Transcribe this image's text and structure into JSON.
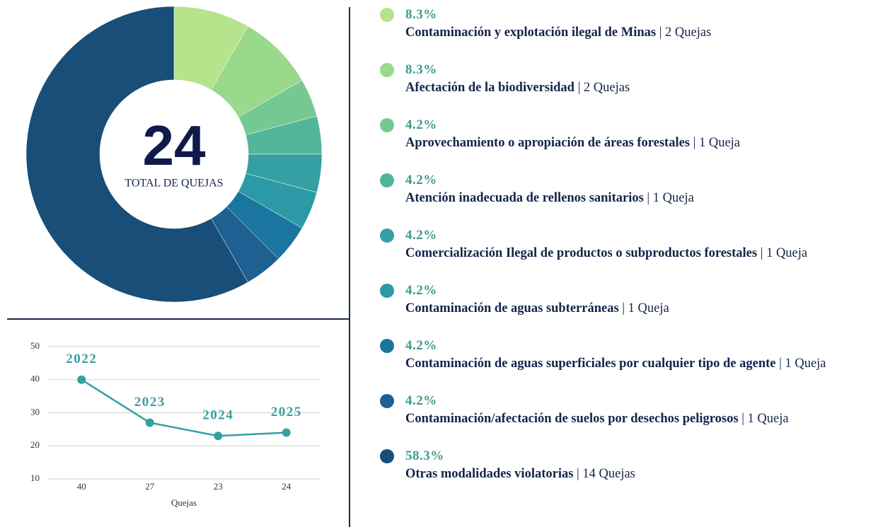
{
  "chart_data": [
    {
      "type": "donut",
      "center_value": 24,
      "center_label": "TOTAL DE QUEJAS",
      "categories": [
        "Contaminación y explotación ilegal de Minas",
        "Afectación de la biodiversidad",
        "Aprovechamiento o apropiación de áreas forestales",
        "Atención inadecuada de rellenos sanitarios",
        "Comercialización Ilegal de productos o subproductos forestales",
        "Contaminación de aguas subterráneas",
        "Contaminación de aguas superficiales por cualquier tipo de agente",
        "Contaminación/afectación de suelos por desechos peligrosos",
        "Otras modalidades violatorias"
      ],
      "values": [
        2,
        2,
        1,
        1,
        1,
        1,
        1,
        1,
        14
      ],
      "value_labels": [
        "| 2 Quejas",
        "| 2 Quejas",
        "| 1 Queja",
        "| 1 Queja",
        "| 1 Queja",
        "| 1 Queja",
        "| 1 Queja",
        "| 1 Queja",
        "| 14 Quejas"
      ],
      "percentages": [
        {
          "value": 8.3,
          "label": "8.3%"
        },
        {
          "value": 8.3,
          "label": "8.3%"
        },
        {
          "value": 4.2,
          "label": "4.2%"
        },
        {
          "value": 4.2,
          "label": "4.2%"
        },
        {
          "value": 4.2,
          "label": "4.2%"
        },
        {
          "value": 4.2,
          "label": "4.2%"
        },
        {
          "value": 4.2,
          "label": "4.2%"
        },
        {
          "value": 4.2,
          "label": "4.2%"
        },
        {
          "value": 58.3,
          "label": "58.3%"
        }
      ],
      "colors": [
        "#b5e48c",
        "#99d98c",
        "#76c893",
        "#52b69a",
        "#34a0a4",
        "#2c9aa6",
        "#1a759f",
        "#1e6091",
        "#184e77"
      ]
    },
    {
      "type": "line",
      "categories": [
        "40",
        "27",
        "23",
        "24"
      ],
      "values": [
        40,
        27,
        23,
        24
      ],
      "point_labels": [
        "2022",
        "2023",
        "2024",
        "2025"
      ],
      "xlabel": "Quejas",
      "color": "#34a0a4",
      "ylim": [
        10,
        50
      ],
      "yticks": [
        10,
        20,
        30,
        40,
        50
      ],
      "grid": true
    }
  ]
}
